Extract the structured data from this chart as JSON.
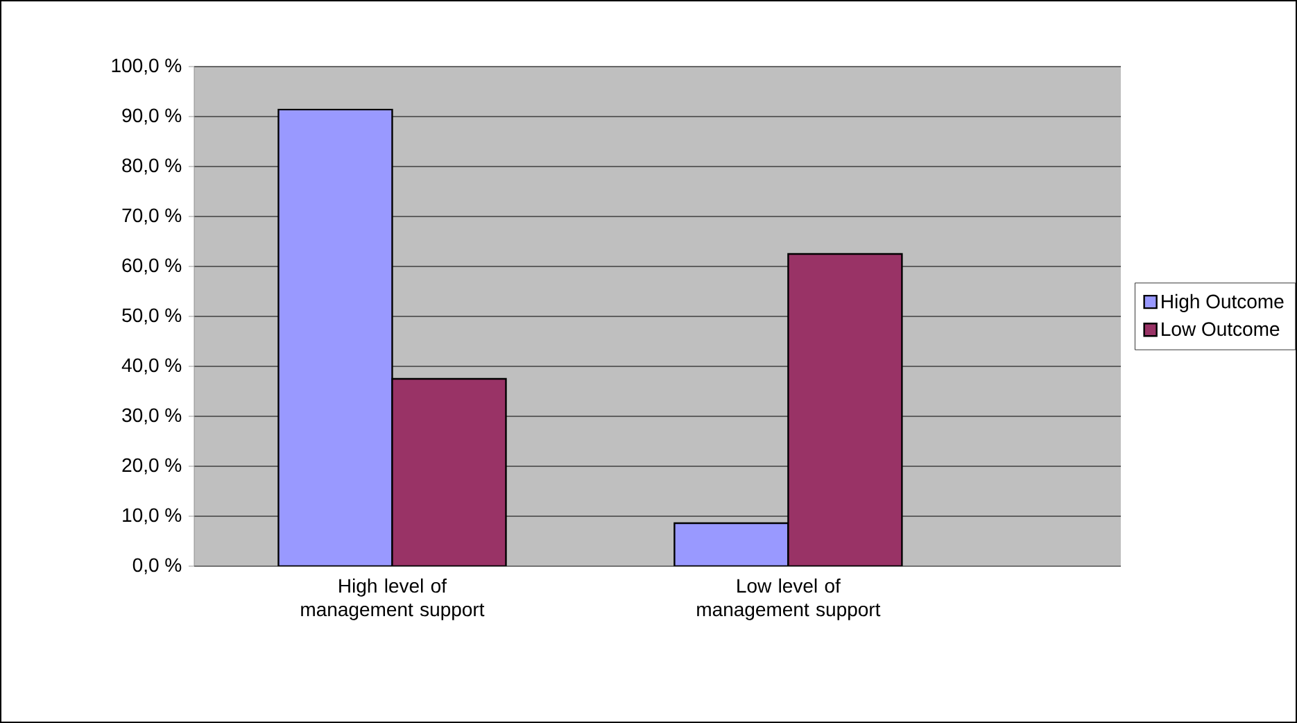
{
  "chart_data": {
    "type": "bar",
    "categories": [
      "High level of management support",
      "Low level of management support"
    ],
    "series": [
      {
        "name": "High Outcome",
        "color": "#9999ff",
        "values": [
          91.4,
          8.6
        ]
      },
      {
        "name": "Low Outcome",
        "color": "#993366",
        "values": [
          37.5,
          62.5
        ]
      }
    ],
    "ylim": [
      0,
      100
    ],
    "yticks": [
      {
        "value": 0,
        "label": "0,0 %"
      },
      {
        "value": 10,
        "label": "10,0 %"
      },
      {
        "value": 20,
        "label": "20,0 %"
      },
      {
        "value": 30,
        "label": "30,0 %"
      },
      {
        "value": 40,
        "label": "40,0 %"
      },
      {
        "value": 50,
        "label": "50,0 %"
      },
      {
        "value": 60,
        "label": "60,0 %"
      },
      {
        "value": 70,
        "label": "70,0 %"
      },
      {
        "value": 80,
        "label": "80,0 %"
      },
      {
        "value": 90,
        "label": "90,0 %"
      },
      {
        "value": 100,
        "label": "100,0 %"
      }
    ],
    "grid": "y",
    "legend": "right"
  }
}
